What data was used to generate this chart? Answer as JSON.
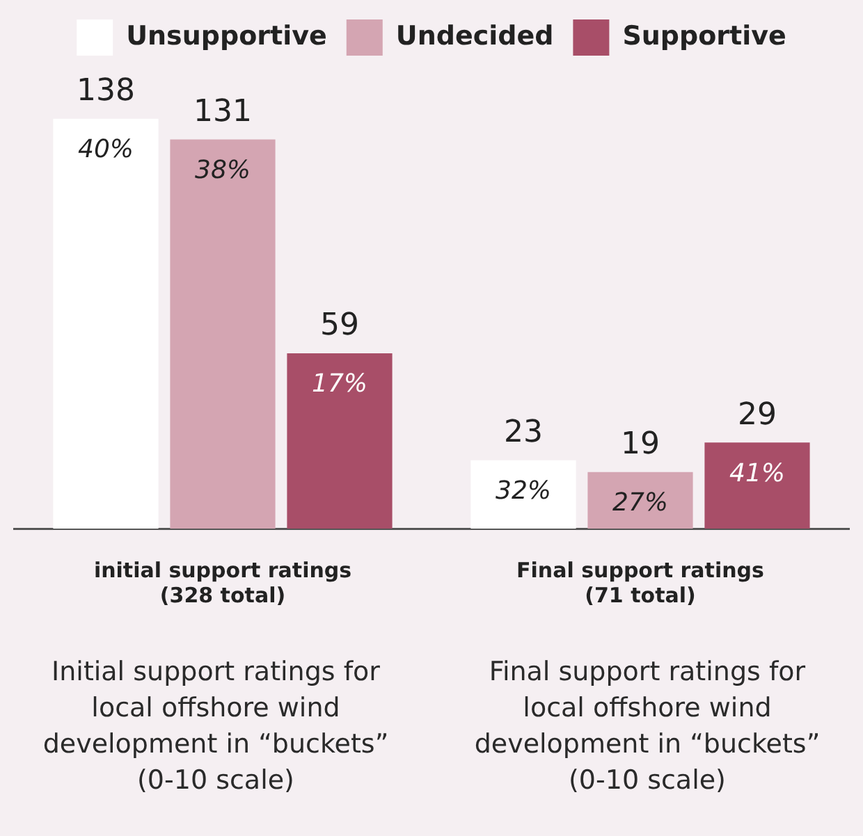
{
  "chart_data": {
    "type": "bar",
    "categories": [
      "initial support ratings\n(328 total)",
      "Final support ratings\n(71 total)"
    ],
    "series": [
      {
        "name": "Unsupportive",
        "color": "#ffffff",
        "values": [
          138,
          23
        ]
      },
      {
        "name": "Undecided",
        "color": "#d4a5b2",
        "values": [
          131,
          19
        ]
      },
      {
        "name": "Supportive",
        "color": "#a84e68",
        "values": [
          59,
          29
        ]
      }
    ],
    "data_labels": true,
    "legend": "top",
    "grid": false,
    "tick_labels": "x",
    "annotations": [
      "40%",
      "38%",
      "17%",
      "32%",
      "27%",
      "41%",
      "Initial support ratings for local offshore wind development in “buckets” (0-10 scale)",
      "Final support ratings for local offshore wind development in “buckets” (0-10 scale)"
    ]
  }
}
